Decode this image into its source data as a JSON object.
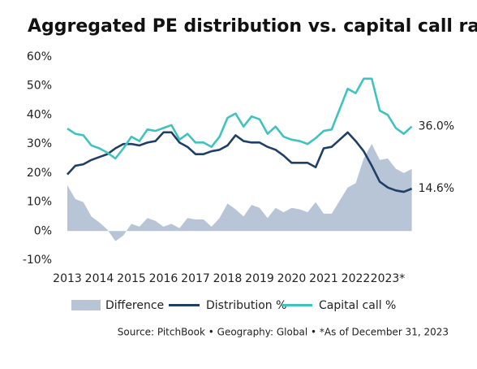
{
  "chart_data": {
    "type": "line",
    "title": "Aggregated PE distribution vs. capital call rates",
    "source": "Source: PitchBook  •  Geography: Global  •  *As of December 31, 2023",
    "categories": [
      "2013",
      null,
      null,
      null,
      "2014",
      null,
      null,
      null,
      "2015",
      null,
      null,
      null,
      "2016",
      null,
      null,
      null,
      "2017",
      null,
      null,
      null,
      "2018",
      null,
      null,
      null,
      "2019",
      null,
      null,
      null,
      "2020",
      null,
      null,
      null,
      "2021",
      null,
      null,
      null,
      "2022",
      null,
      null,
      null,
      "2023*",
      null,
      null,
      null
    ],
    "series": [
      {
        "name": "Difference",
        "kind": "area",
        "color": "#b8c5d6",
        "values": [
          15.8,
          11,
          10,
          5,
          3,
          0.5,
          -3.5,
          -1.5,
          2.5,
          1.5,
          4.5,
          3.5,
          1.5,
          2.5,
          1,
          4.5,
          4,
          4,
          1.5,
          4.5,
          9.5,
          7.5,
          5,
          9,
          8,
          4.5,
          8,
          6.5,
          8,
          7.5,
          6.5,
          10,
          6,
          6,
          10.5,
          15,
          16.5,
          25,
          30,
          24.5,
          25,
          21.5,
          20,
          21.4
        ]
      },
      {
        "name": "Distribution %",
        "kind": "line",
        "color": "#1f3f66",
        "values": [
          19.5,
          22.5,
          23,
          24.5,
          25.5,
          26.5,
          28.5,
          30,
          30,
          29.5,
          30.5,
          31,
          34,
          34,
          30.5,
          29,
          26.5,
          26.5,
          27.5,
          28,
          29.5,
          33,
          31,
          30.5,
          30.5,
          29,
          28,
          26,
          23.5,
          23.5,
          23.5,
          22,
          28.5,
          29,
          31.5,
          34,
          31,
          27.5,
          22.5,
          17,
          15,
          14,
          13.5,
          14.6
        ],
        "value_labels": [
          null,
          null,
          null,
          null,
          null,
          null,
          null,
          null,
          null,
          null,
          null,
          null,
          null,
          null,
          null,
          null,
          null,
          null,
          null,
          null,
          null,
          null,
          null,
          null,
          null,
          null,
          null,
          null,
          null,
          null,
          null,
          null,
          null,
          null,
          null,
          null,
          null,
          null,
          null,
          null,
          null,
          null,
          null,
          "14.6%"
        ]
      },
      {
        "name": "Capital call %",
        "kind": "line",
        "color": "#3fc3bf",
        "values": [
          35.3,
          33.5,
          33,
          29.5,
          28.5,
          27,
          25,
          28.5,
          32.5,
          31,
          35,
          34.5,
          35.5,
          36.5,
          31.5,
          33.5,
          30.5,
          30.5,
          29,
          32.5,
          39,
          40.5,
          36,
          39.5,
          38.5,
          33.5,
          36,
          32.5,
          31.5,
          31,
          30,
          32,
          34.5,
          35,
          42,
          49,
          47.5,
          52.5,
          52.5,
          41.5,
          40,
          35.5,
          33.5,
          36.0
        ],
        "value_labels": [
          null,
          null,
          null,
          null,
          null,
          null,
          null,
          null,
          null,
          null,
          null,
          null,
          null,
          null,
          null,
          null,
          null,
          null,
          null,
          null,
          null,
          null,
          null,
          null,
          null,
          null,
          null,
          null,
          null,
          null,
          null,
          null,
          null,
          null,
          null,
          null,
          null,
          null,
          null,
          null,
          null,
          null,
          null,
          "36.0%"
        ]
      }
    ],
    "ylim": [
      -10,
      60
    ],
    "yticks": [
      {
        "value": -10,
        "label": "-10%"
      },
      {
        "value": 0,
        "label": "0%"
      },
      {
        "value": 10,
        "label": "10%"
      },
      {
        "value": 20,
        "label": "20%"
      },
      {
        "value": 30,
        "label": "30%"
      },
      {
        "value": 40,
        "label": "40%"
      },
      {
        "value": 50,
        "label": "50%"
      },
      {
        "value": 60,
        "label": "60%"
      }
    ],
    "grid": false,
    "legend": "bottom"
  }
}
